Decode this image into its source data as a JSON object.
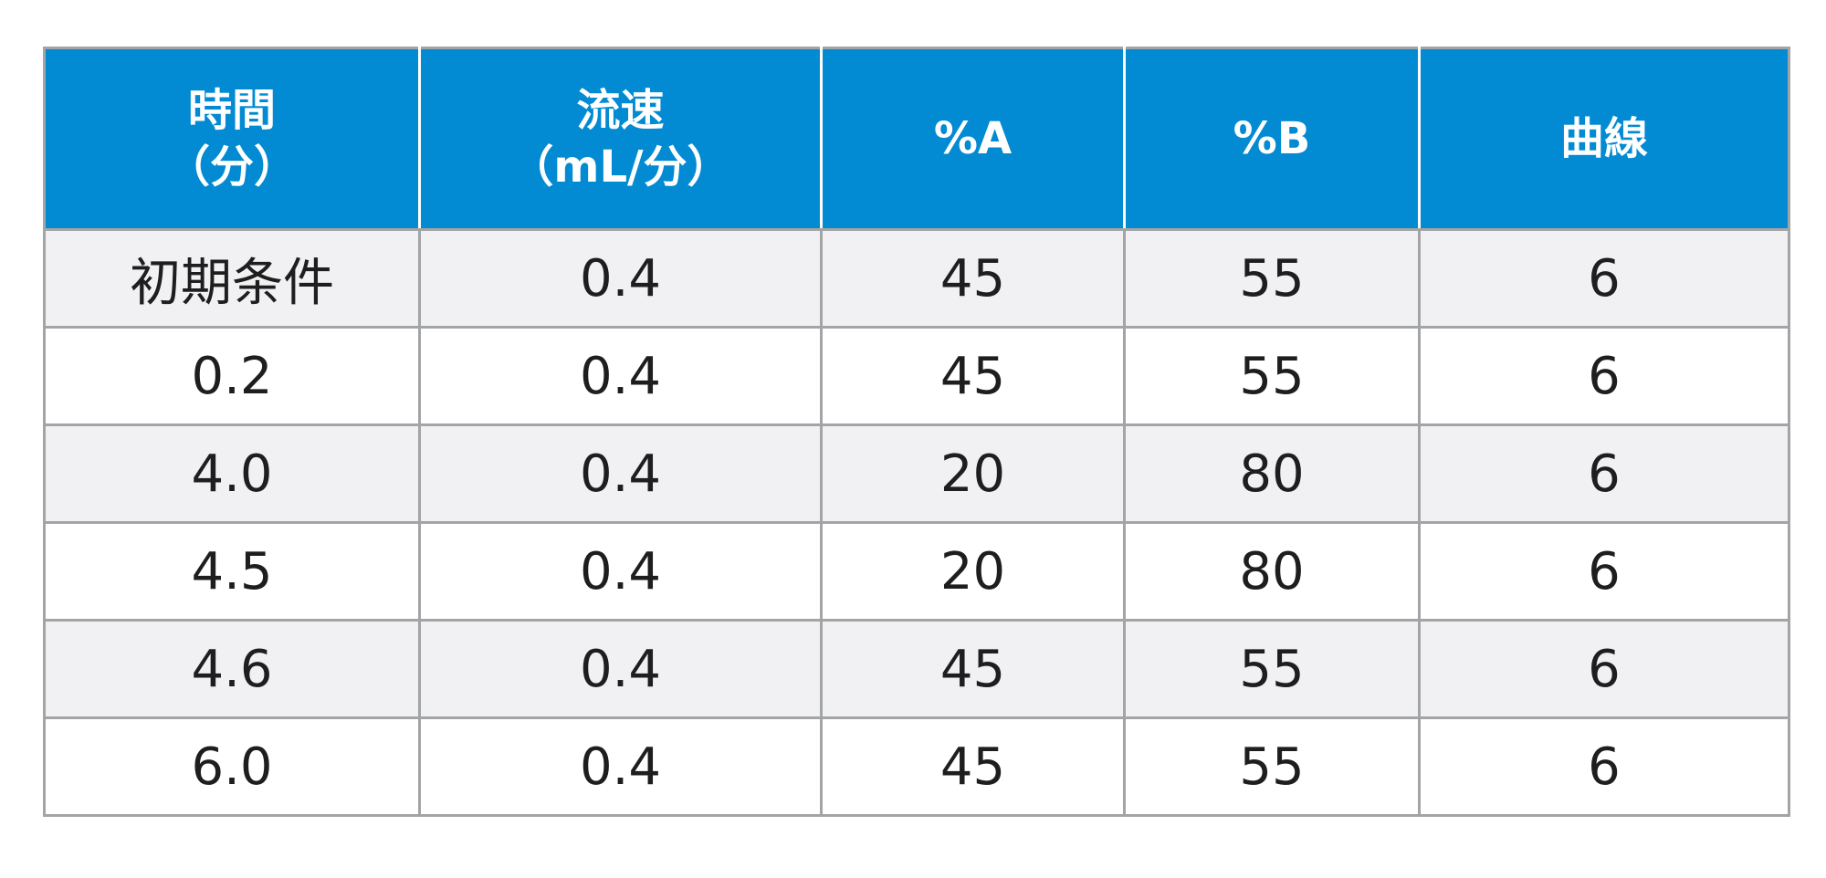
{
  "table": {
    "headers": [
      {
        "line1": "時間",
        "line2": "（分）"
      },
      {
        "line1": "流速",
        "line2": "（mL/分）"
      },
      {
        "line1": "%A",
        "line2": ""
      },
      {
        "line1": "%B",
        "line2": ""
      },
      {
        "line1": "曲線",
        "line2": ""
      }
    ],
    "rows": [
      [
        "初期条件",
        "0.4",
        "45",
        "55",
        "6"
      ],
      [
        "0.2",
        "0.4",
        "45",
        "55",
        "6"
      ],
      [
        "4.0",
        "0.4",
        "20",
        "80",
        "6"
      ],
      [
        "4.5",
        "0.4",
        "20",
        "80",
        "6"
      ],
      [
        "4.6",
        "0.4",
        "45",
        "55",
        "6"
      ],
      [
        "6.0",
        "0.4",
        "45",
        "55",
        "6"
      ]
    ]
  },
  "colors": {
    "header_bg": "#028bd2",
    "header_text": "#ffffff",
    "row_alt_bg": "#f1f1f3",
    "border": "#a3a4a6",
    "body_text": "#1e1e1e"
  }
}
